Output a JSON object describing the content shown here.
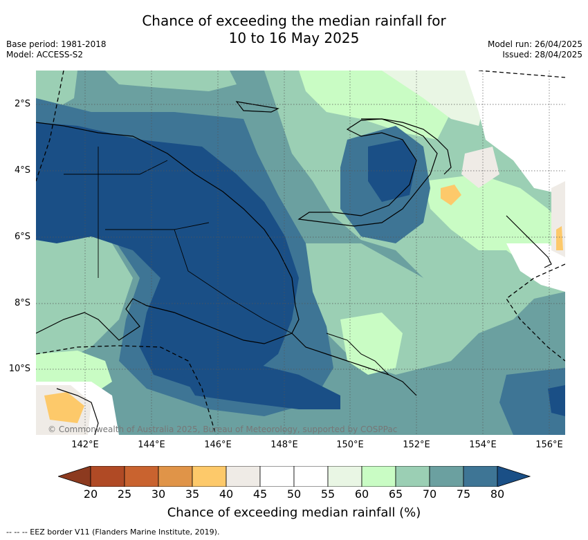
{
  "header": {
    "title_line1": "Chance of exceeding the median rainfall for",
    "title_line2": "10 to 16 May 2025",
    "base_period": "Base period: 1981-2018",
    "model": "Model: ACCESS-S2",
    "model_run": "Model run: 26/04/2025",
    "issued": "Issued: 28/04/2025"
  },
  "map": {
    "lat_labels": [
      "2°S",
      "4°S",
      "6°S",
      "8°S",
      "10°S"
    ],
    "lon_labels": [
      "142°E",
      "144°E",
      "146°E",
      "148°E",
      "150°E",
      "152°E",
      "154°E",
      "156°E"
    ],
    "copyright": "© Commonwealth of Australia 2025, Bureau of Meteorology, supported by COSPPac"
  },
  "colorbar": {
    "ticks": [
      "20",
      "25",
      "30",
      "35",
      "40",
      "45",
      "50",
      "55",
      "60",
      "65",
      "70",
      "75",
      "80"
    ],
    "colors": [
      "#8c3a1f",
      "#b04a25",
      "#c9632f",
      "#e09448",
      "#fdc96a",
      "#efebe6",
      "#ffffff",
      "#ffffff",
      "#e9f6e4",
      "#c9fcc4",
      "#9bcfb4",
      "#6ba0a0",
      "#3e7595",
      "#1a4f86"
    ],
    "label": "Chance of exceeding median rainfall (%)"
  },
  "footnote": "--  --  -- EEZ border V11 (Flanders Marine Institute, 2019)."
}
